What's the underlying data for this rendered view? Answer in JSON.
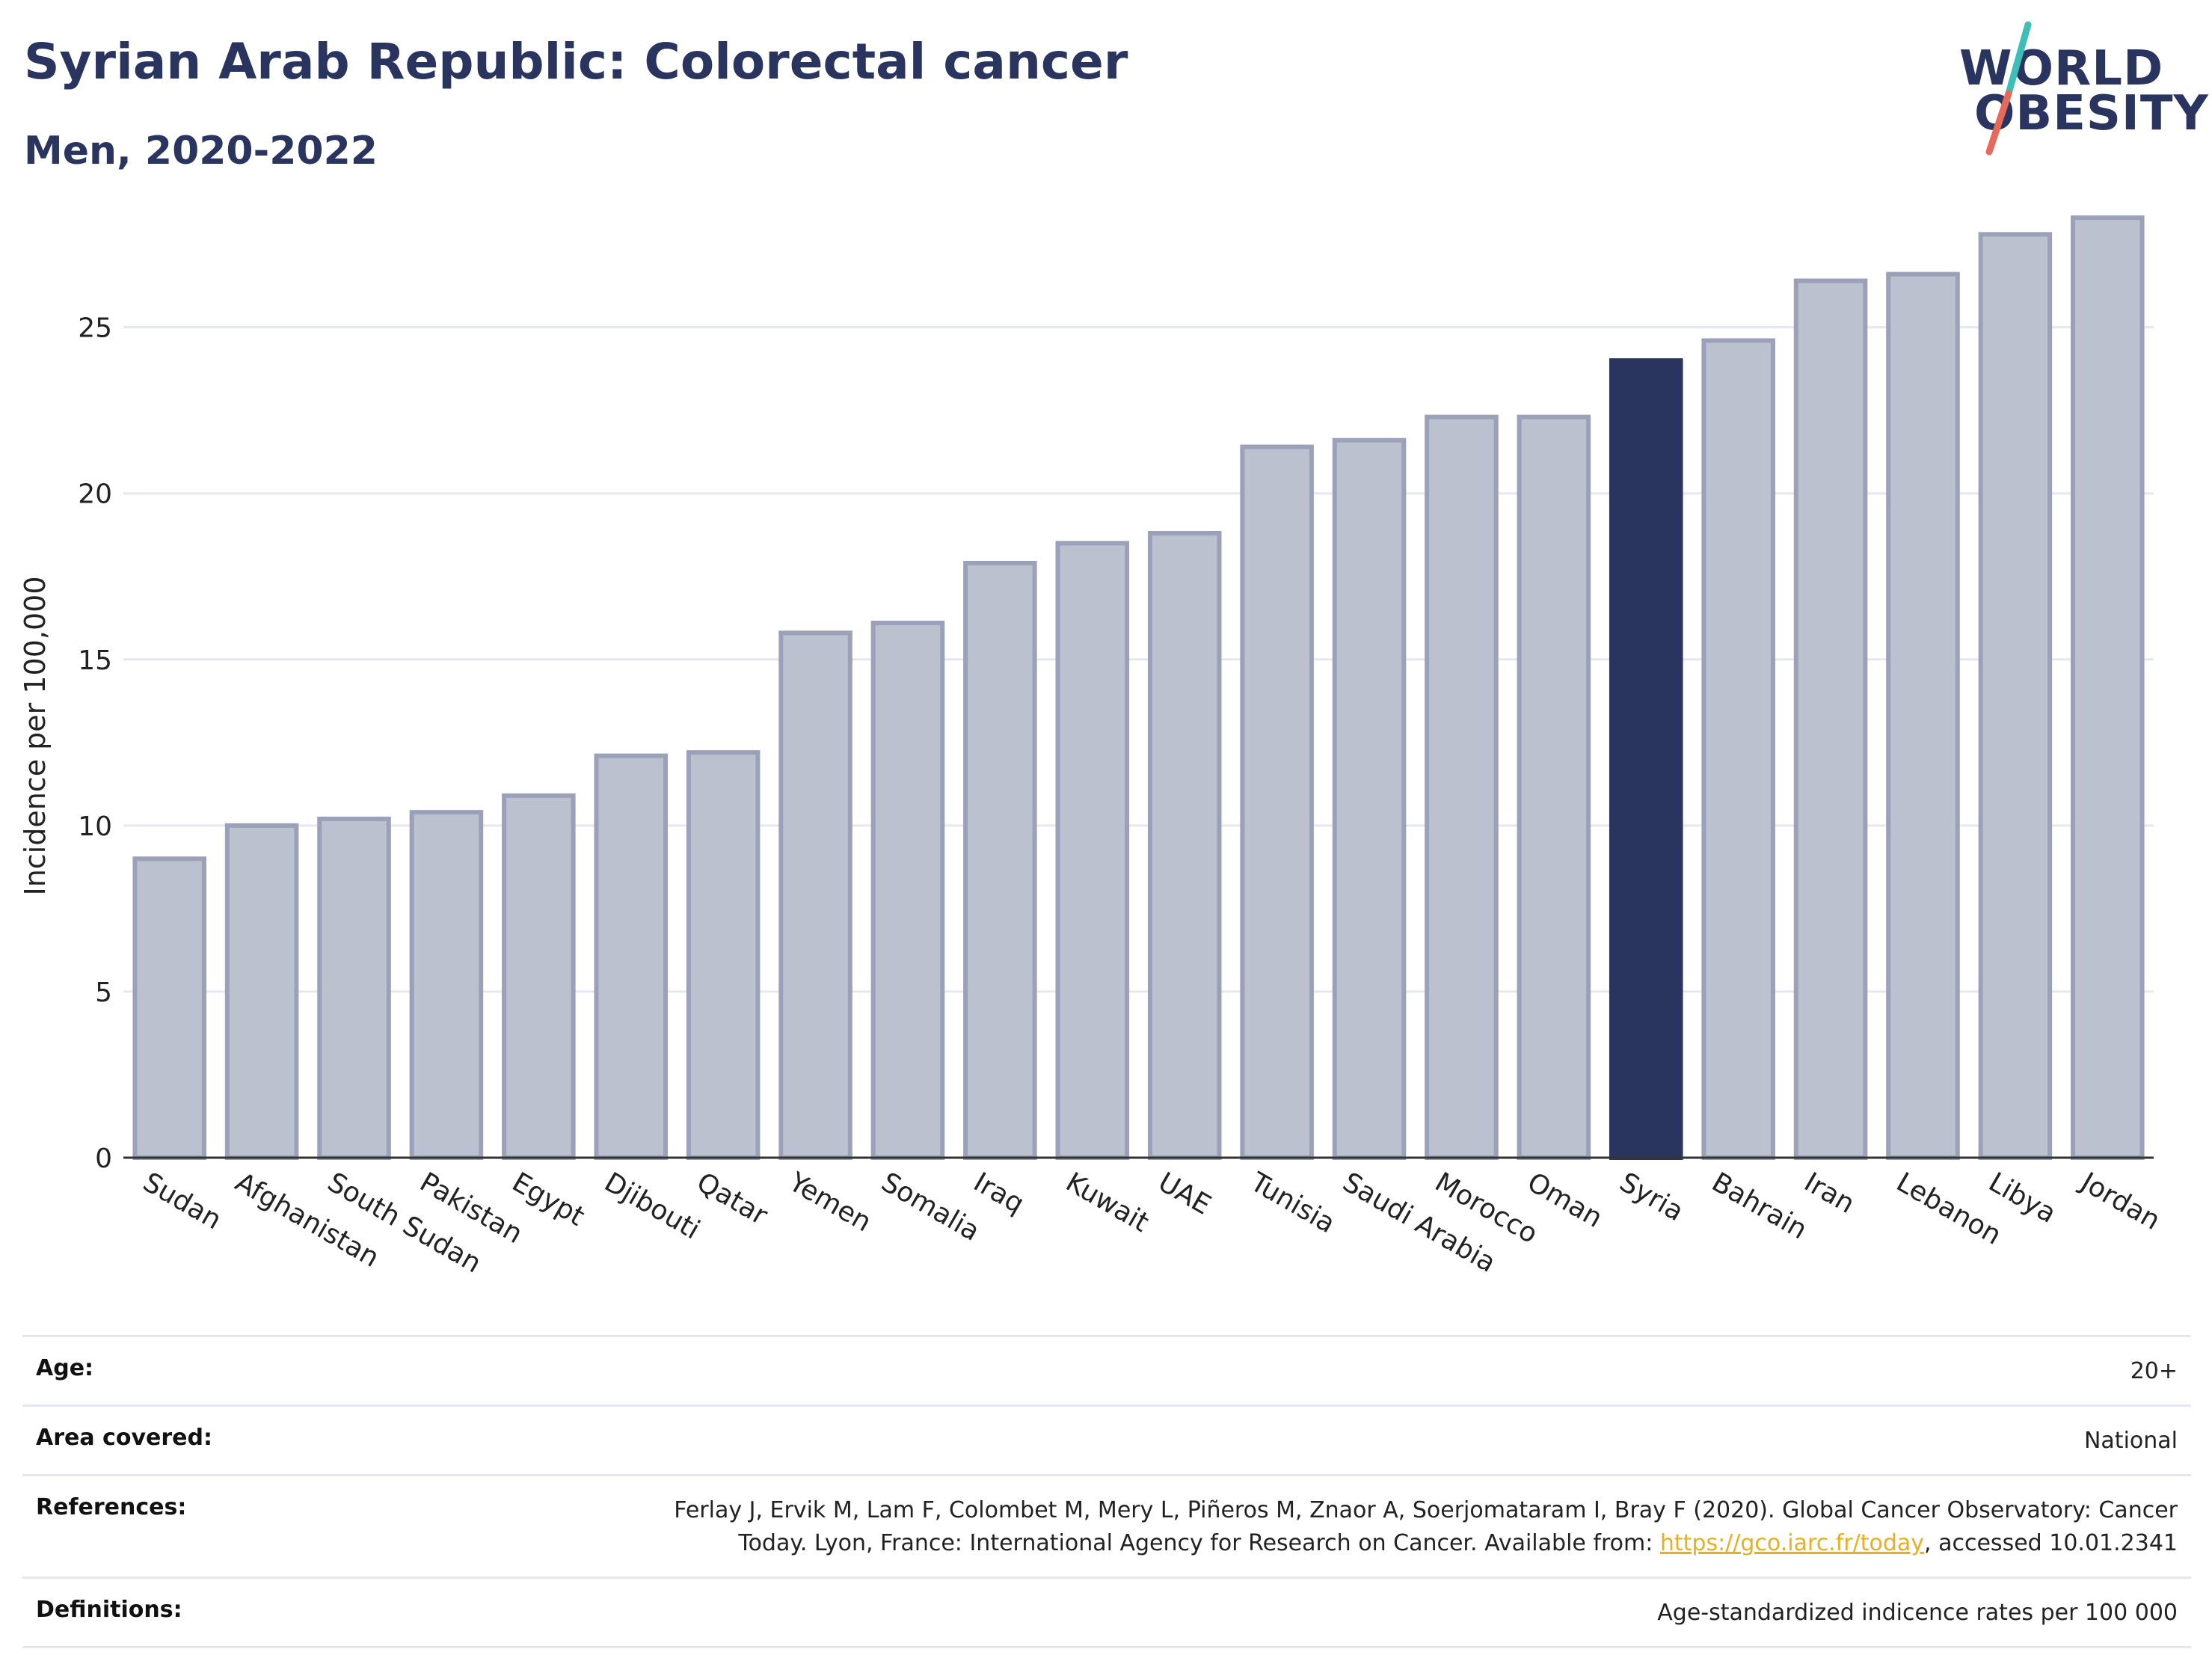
{
  "header": {
    "title": "Syrian Arab Republic: Colorectal cancer",
    "subtitle": "Men, 2020-2022"
  },
  "logo": {
    "line1": "WORLD",
    "line2": "OBESITY",
    "colors": {
      "text": "#2a355f",
      "slash_top": "#3dbfb8",
      "slash_bottom": "#e8685a"
    }
  },
  "chart_data": {
    "type": "bar",
    "ylabel": "Incidence per 100,000",
    "ylim": [
      0,
      29
    ],
    "yticks": [
      0,
      5,
      10,
      15,
      20,
      25
    ],
    "grid": true,
    "highlight": "Syria",
    "colors": {
      "bar": "#bcc1cf",
      "bar_border": "#9aa1b8",
      "highlight": "#2a355f"
    },
    "categories": [
      "Sudan",
      "Afghanistan",
      "South Sudan",
      "Pakistan",
      "Egypt",
      "Djibouti",
      "Qatar",
      "Yemen",
      "Somalia",
      "Iraq",
      "Kuwait",
      "UAE",
      "Tunisia",
      "Saudi Arabia",
      "Morocco",
      "Oman",
      "Syria",
      "Bahrain",
      "Iran",
      "Lebanon",
      "Libya",
      "Jordan"
    ],
    "values": [
      9.0,
      10.0,
      10.2,
      10.4,
      10.9,
      12.1,
      12.2,
      15.8,
      16.1,
      17.9,
      18.5,
      18.8,
      21.4,
      21.6,
      22.3,
      22.3,
      24.0,
      24.6,
      26.4,
      26.6,
      27.8,
      28.3
    ]
  },
  "info": {
    "age_label": "Age:",
    "age_value": "20+",
    "area_label": "Area covered:",
    "area_value": "National",
    "references_label": "References:",
    "references_line1": "Ferlay J, Ervik M, Lam F, Colombet M, Mery L, Piñeros M, Znaor A, Soerjomataram I, Bray F (2020). Global Cancer Observatory: Cancer",
    "references_line2_pre": "Today. Lyon, France: International Agency for Research on Cancer. Available from: ",
    "references_link": "https://gco.iarc.fr/today",
    "references_line2_post": ", accessed 10.01.2341",
    "definitions_label": "Definitions:",
    "definitions_value": "Age-standardized indicence rates per 100 000"
  }
}
